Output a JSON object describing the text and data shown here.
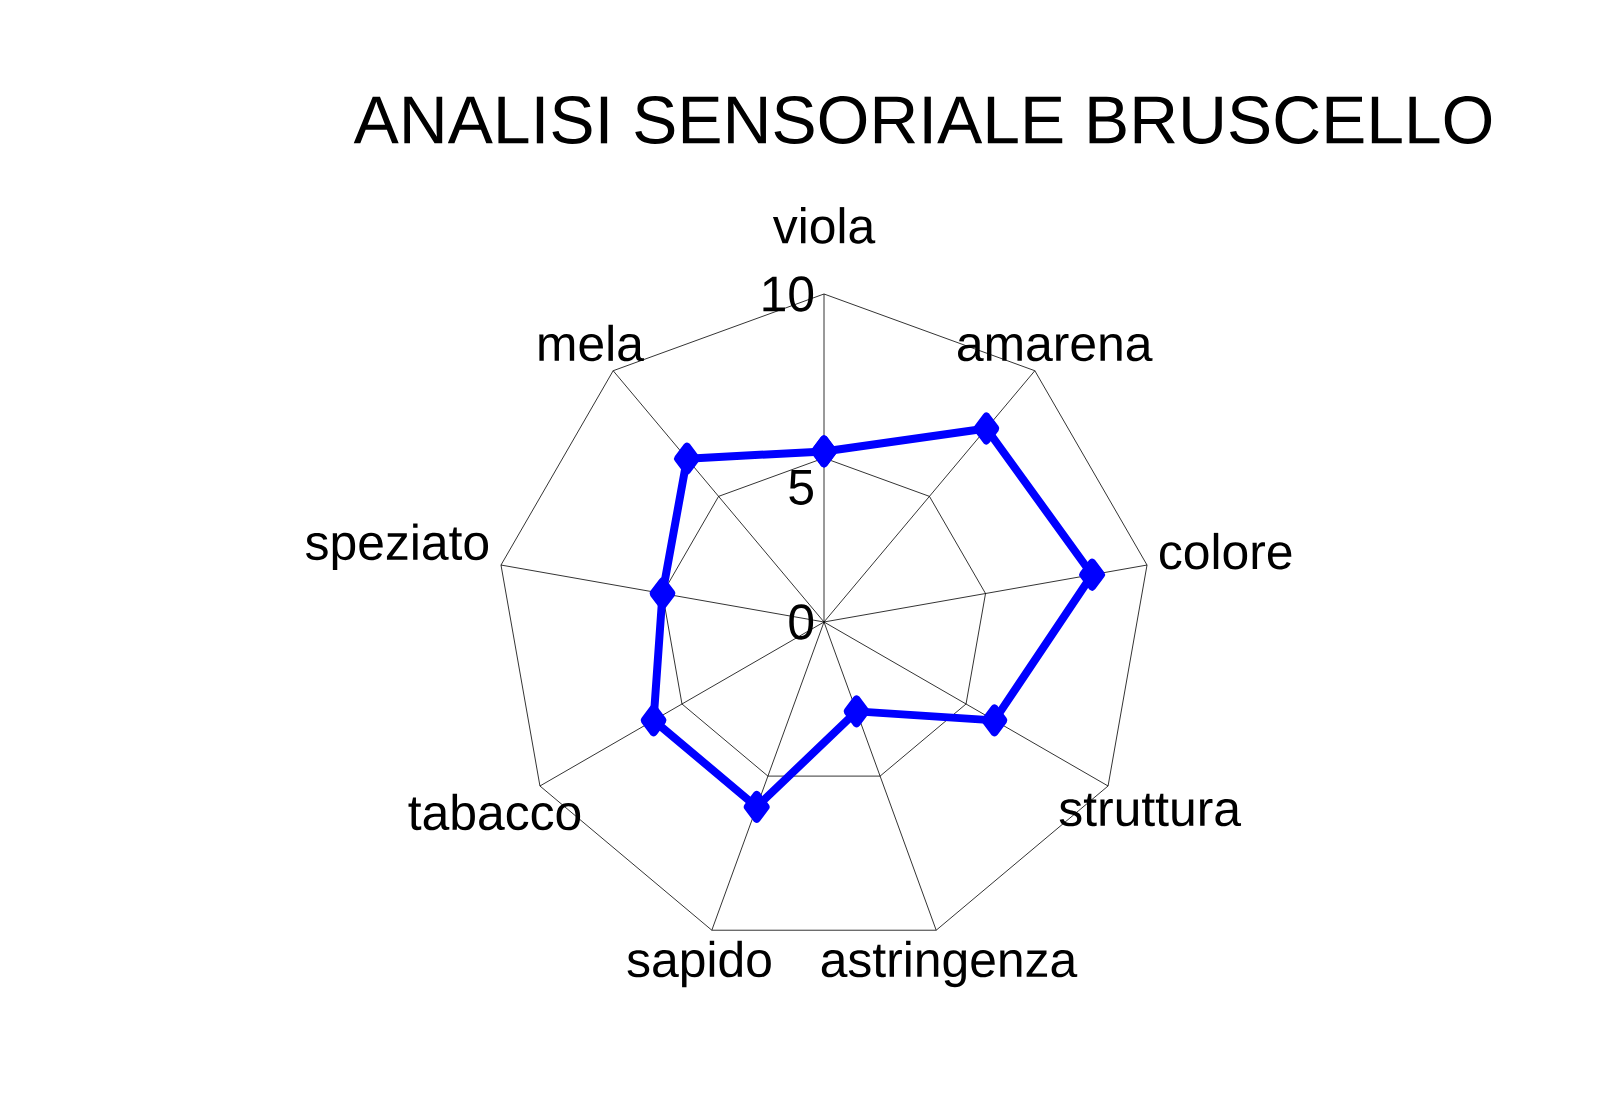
{
  "chart_data": {
    "type": "radar",
    "title": "ANALISI SENSORIALE BRUSCELLO",
    "categories": [
      "viola",
      "amarena",
      "colore",
      "struttura",
      "astringenza",
      "sapido",
      "tabacco",
      "speziato",
      "mela"
    ],
    "series": [
      {
        "color": "#0000ff",
        "values": [
          5.2,
          7.7,
          8.3,
          6.0,
          2.9,
          6.0,
          6.0,
          5.0,
          6.5
        ]
      }
    ],
    "ylim": [
      0,
      10
    ],
    "yticks": [
      0,
      5,
      10
    ],
    "marker": "diamond"
  }
}
